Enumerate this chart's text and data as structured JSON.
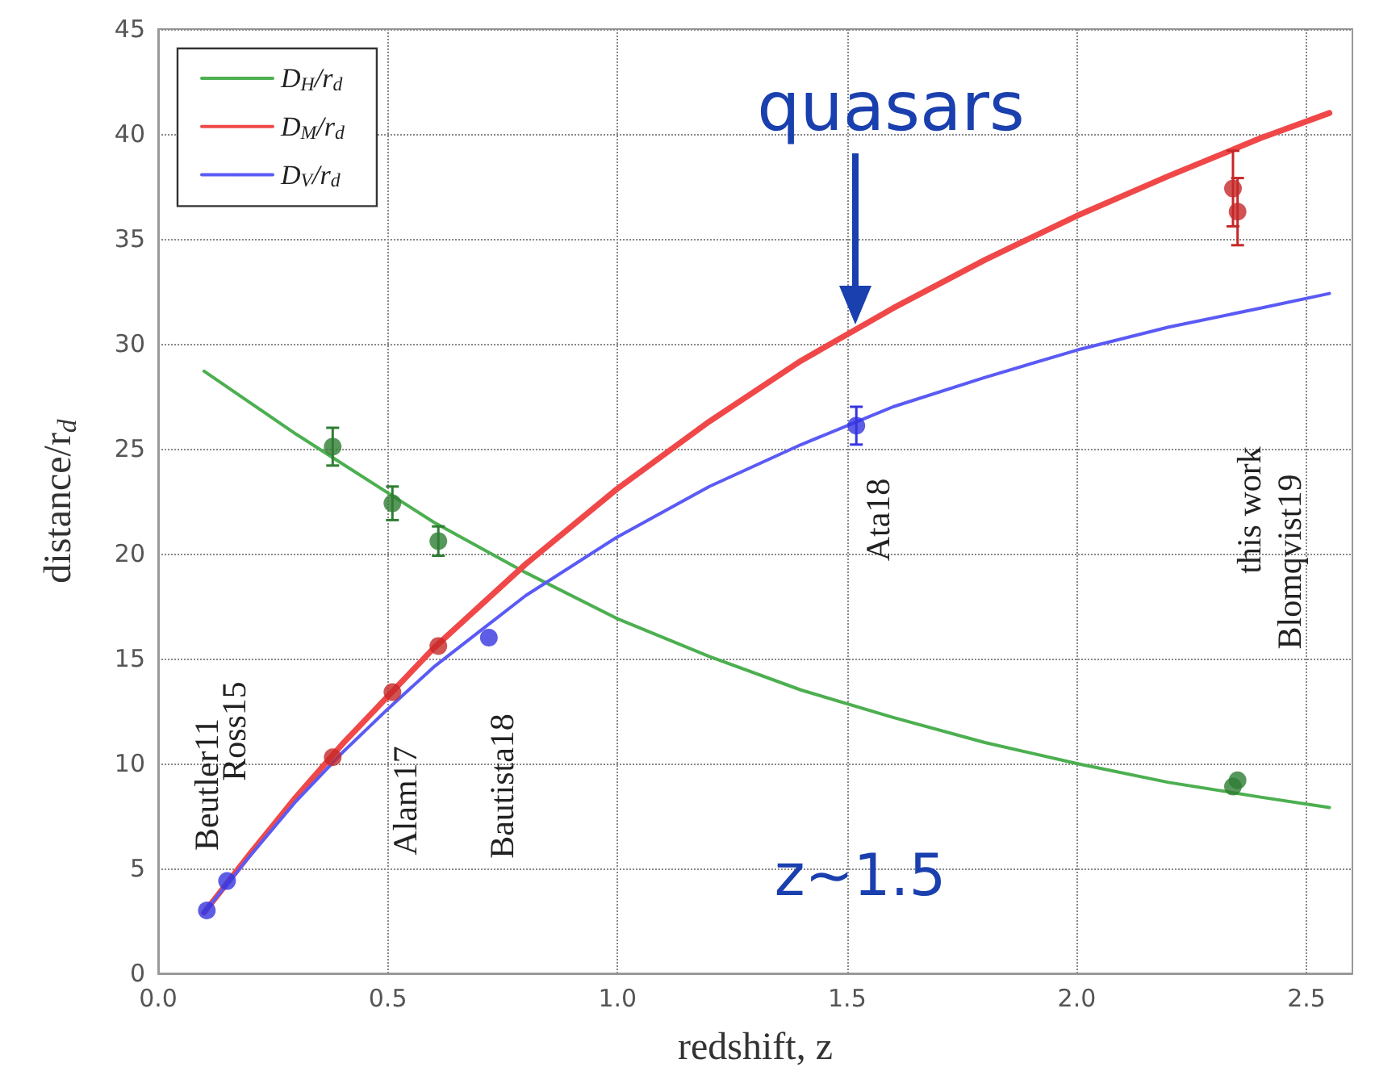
{
  "chart_data": {
    "type": "line",
    "xlabel": "redshift, z",
    "ylabel": "distance/r$_{d}$",
    "xlim": [
      0,
      2.6
    ],
    "xticks": [
      {
        "value": 0,
        "label": "0.0"
      },
      {
        "value": 0.5,
        "label": "0.5"
      },
      {
        "value": 1,
        "label": "1.0"
      },
      {
        "value": 1.5,
        "label": "1.5"
      },
      {
        "value": 2,
        "label": "2.0"
      },
      {
        "value": 2.5,
        "label": "2.5"
      }
    ],
    "ylim": [
      0,
      45
    ],
    "yticks": [
      0,
      5,
      10,
      15,
      20,
      25,
      30,
      35,
      40,
      45
    ],
    "grid": true,
    "legend": "top left",
    "marker": "none",
    "line_style": "solid",
    "series": [
      {
        "name": "D$_{H}$/r$_{d}$",
        "color": "#4caf50",
        "x": [
          0.1,
          0.2,
          0.3,
          0.4,
          0.5,
          0.6,
          0.7,
          0.8,
          1.0,
          1.2,
          1.4,
          1.6,
          1.8,
          2.0,
          2.2,
          2.4,
          2.55
        ],
        "values": [
          28.7,
          27.2,
          25.7,
          24.3,
          22.9,
          21.5,
          20.3,
          19.1,
          16.9,
          15.1,
          13.5,
          12.2,
          11.0,
          10.0,
          9.1,
          8.4,
          7.9
        ]
      },
      {
        "name": "D$_{M}$/r$_{d}$",
        "color": "#f04848",
        "x": [
          0.1,
          0.2,
          0.3,
          0.4,
          0.5,
          0.6,
          0.7,
          0.8,
          1.0,
          1.2,
          1.4,
          1.6,
          1.8,
          2.0,
          2.2,
          2.4,
          2.55
        ],
        "values": [
          2.9,
          5.7,
          8.4,
          10.9,
          13.2,
          15.5,
          17.5,
          19.5,
          23.1,
          26.3,
          29.2,
          31.7,
          34.0,
          36.1,
          38.0,
          39.8,
          41.0
        ]
      },
      {
        "name": "D$_{V}$/r$_{d}$",
        "color": "#5a5af5",
        "x": [
          0.1,
          0.2,
          0.3,
          0.4,
          0.5,
          0.6,
          0.7,
          0.8,
          1.0,
          1.2,
          1.4,
          1.6,
          1.8,
          2.0,
          2.2,
          2.4,
          2.55
        ],
        "values": [
          2.9,
          5.6,
          8.2,
          10.5,
          12.6,
          14.6,
          16.3,
          18.0,
          20.8,
          23.2,
          25.2,
          27.0,
          28.4,
          29.7,
          30.8,
          31.7,
          32.4
        ]
      },
      {
        "type": "scatter",
        "marker": "circle",
        "color": "#2e7d32",
        "x": [
          0.38,
          0.51,
          0.61,
          2.34,
          2.35
        ],
        "values": [
          25.1,
          22.4,
          20.6,
          8.9,
          9.2
        ],
        "errors": [
          0.9,
          0.8,
          0.7,
          null,
          null
        ]
      },
      {
        "type": "scatter",
        "marker": "circle",
        "color": "#c62828",
        "x": [
          0.38,
          0.51,
          0.61,
          2.34,
          2.35
        ],
        "values": [
          10.3,
          13.4,
          15.6,
          37.4,
          36.3
        ],
        "errors": [
          null,
          null,
          null,
          1.8,
          1.6
        ]
      },
      {
        "type": "scatter",
        "marker": "circle",
        "color": "#3535e0",
        "x": [
          0.106,
          0.15,
          0.72,
          1.52
        ],
        "values": [
          3.0,
          4.4,
          16.0,
          26.1
        ],
        "errors": [
          null,
          null,
          null,
          0.9
        ]
      }
    ],
    "annotations": [
      "Beutler11",
      "Ross15",
      "Alam17",
      "Bautista18",
      "Ata18",
      "this work",
      "Blomqvist19",
      "quasars",
      "z~1.5"
    ]
  }
}
